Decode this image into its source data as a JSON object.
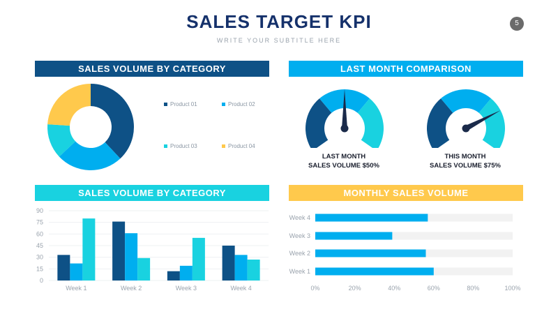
{
  "header": {
    "title": "SALES TARGET KPI",
    "subtitle": "WRITE YOUR SUBTITLE HERE",
    "page": "5"
  },
  "colors": {
    "navy": "#0e5186",
    "blue": "#00aeef",
    "cyan": "#19d2e0",
    "yellow": "#ffc94c",
    "title": "#15316b"
  },
  "panels": {
    "donut_title": "SALES VOLUME BY CATEGORY",
    "gauge_title": "LAST MONTH COMPARISON",
    "column_title": "SALES VOLUME BY CATEGORY",
    "hbar_title": "MONTHLY SALES VOLUME"
  },
  "gauges": [
    {
      "line1": "LAST MONTH",
      "line2": "SALES VOLUME $50%",
      "value": 50
    },
    {
      "line1": "THIS MONTH",
      "line2": "SALES VOLUME $75%",
      "value": 75
    }
  ],
  "chart_data": [
    {
      "type": "pie",
      "categories": [
        "Product 01",
        "Product 02",
        "Product 03",
        "Product 04"
      ],
      "values": [
        38,
        25,
        13,
        24
      ],
      "colors": [
        "#0e5186",
        "#00aeef",
        "#19d2e0",
        "#ffc94c"
      ],
      "legend": "right"
    },
    {
      "type": "bar",
      "categories": [
        "Week 1",
        "Week 2",
        "Week 3",
        "Week 4"
      ],
      "series": [
        {
          "values": [
            33,
            76,
            12,
            45
          ]
        },
        {
          "values": [
            22,
            61,
            19,
            33
          ]
        },
        {
          "values": [
            80,
            29,
            55,
            27
          ]
        }
      ],
      "colors": [
        "#0e5186",
        "#00aeef",
        "#19d2e0"
      ],
      "ylim": [
        0,
        90
      ],
      "yticks": [
        "0",
        "15",
        "30",
        "45",
        "60",
        "75",
        "90"
      ]
    },
    {
      "type": "bar",
      "orientation": "horizontal",
      "categories": [
        "Week 4",
        "Week 3",
        "Week 2",
        "Week 1"
      ],
      "values": [
        57,
        39,
        56,
        60
      ],
      "xlim": [
        0,
        100
      ],
      "xticks": [
        "0%",
        "20%",
        "40%",
        "60%",
        "80%",
        "100%"
      ],
      "color": "#00aeef",
      "track_color": "#f2f2f2"
    }
  ]
}
